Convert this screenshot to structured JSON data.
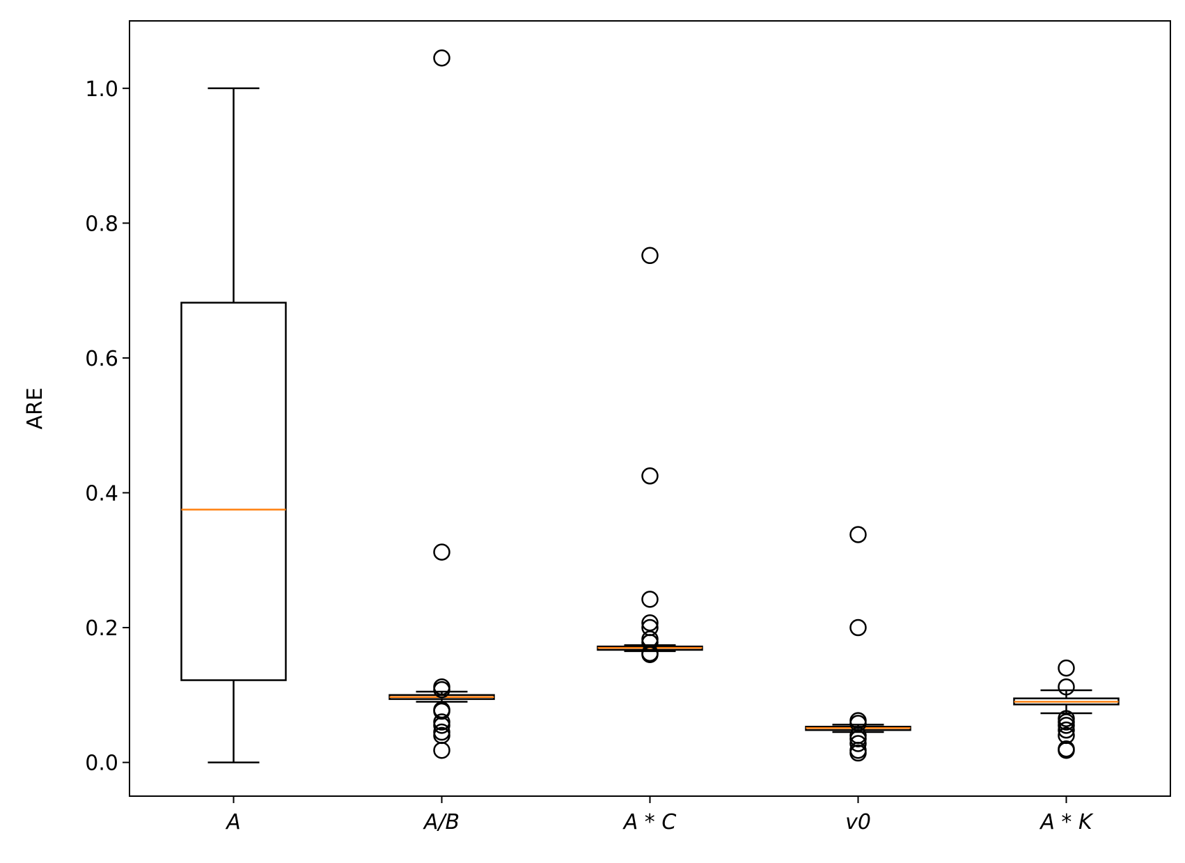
{
  "chart_data": {
    "type": "boxplot",
    "title": "",
    "xlabel": "",
    "ylabel": "ARE",
    "ylim": [
      -0.05,
      1.1
    ],
    "yticks": [
      0.0,
      0.2,
      0.4,
      0.6,
      0.8,
      1.0
    ],
    "ytick_labels": [
      "0.0",
      "0.2",
      "0.4",
      "0.6",
      "0.8",
      "1.0"
    ],
    "grid": false,
    "colors": {
      "box": "#000000",
      "median": "#ff7f0e",
      "outlier": "#000000"
    },
    "categories": [
      "A",
      "A/B",
      "A*C",
      "v0",
      "A*K"
    ],
    "category_labels": [
      "A",
      "A/B",
      "A * C",
      "v0",
      "A * K"
    ],
    "boxes": [
      {
        "whisker_low": 0.0,
        "q1": 0.122,
        "median": 0.375,
        "q3": 0.682,
        "whisker_high": 1.0,
        "outliers": []
      },
      {
        "whisker_low": 0.09,
        "q1": 0.094,
        "median": 0.097,
        "q3": 0.1,
        "whisker_high": 0.105,
        "outliers": [
          1.045,
          0.312,
          0.112,
          0.108,
          0.078,
          0.076,
          0.06,
          0.055,
          0.045,
          0.04,
          0.018
        ]
      },
      {
        "whisker_low": 0.165,
        "q1": 0.167,
        "median": 0.17,
        "q3": 0.172,
        "whisker_high": 0.174,
        "outliers": [
          0.752,
          0.425,
          0.242,
          0.207,
          0.2,
          0.183,
          0.178,
          0.162,
          0.16
        ]
      },
      {
        "whisker_low": 0.045,
        "q1": 0.048,
        "median": 0.051,
        "q3": 0.053,
        "whisker_high": 0.056,
        "outliers": [
          0.338,
          0.2,
          0.062,
          0.058,
          0.04,
          0.035,
          0.028,
          0.018,
          0.014
        ]
      },
      {
        "whisker_low": 0.073,
        "q1": 0.086,
        "median": 0.09,
        "q3": 0.095,
        "whisker_high": 0.107,
        "outliers": [
          0.14,
          0.112,
          0.065,
          0.06,
          0.055,
          0.048,
          0.04,
          0.02,
          0.018
        ]
      }
    ]
  }
}
